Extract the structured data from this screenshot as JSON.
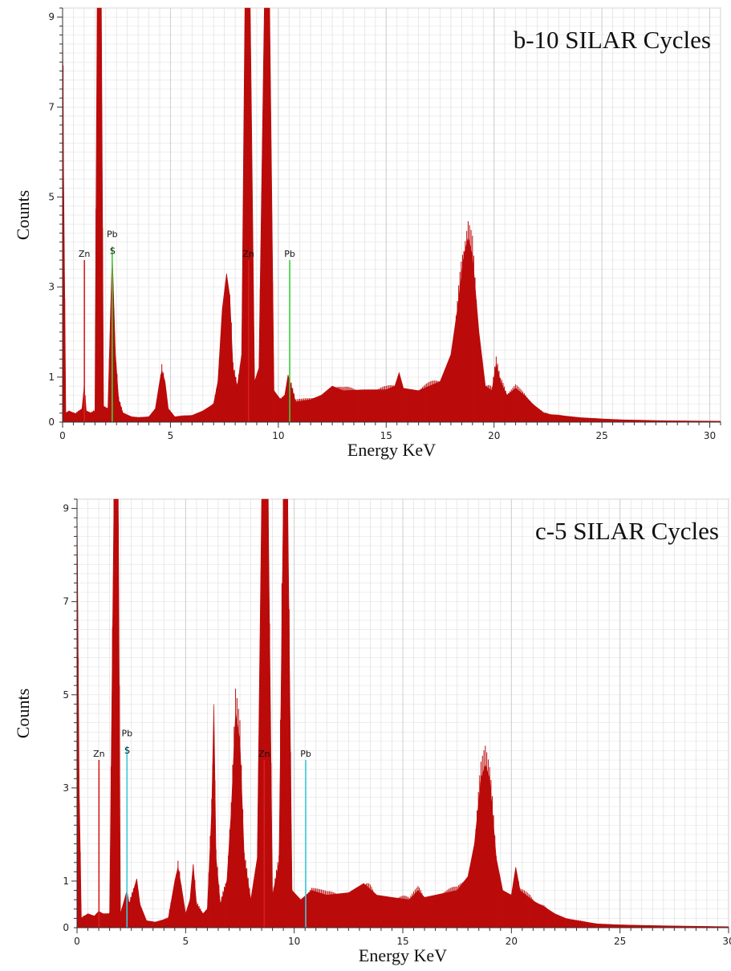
{
  "chart_data": [
    {
      "type": "area",
      "title": "b-10 SILAR Cycles",
      "xlabel": "Energy KeV",
      "ylabel": "Counts",
      "xlim": [
        0,
        30.5
      ],
      "ylim": [
        0,
        9.2
      ],
      "xticks": [
        0,
        5,
        10,
        15,
        20,
        25,
        30
      ],
      "yticks": [
        1,
        3,
        5,
        7,
        9
      ],
      "grid": true,
      "colors": {
        "spectrum": "#bb0b0b",
        "zn_marker": "#d91e1e",
        "pb_marker": "#3fcf3f"
      },
      "spectrum_points": [
        [
          0.0,
          9.2
        ],
        [
          0.05,
          5.5
        ],
        [
          0.15,
          0.2
        ],
        [
          0.3,
          0.25
        ],
        [
          0.6,
          0.18
        ],
        [
          0.9,
          0.3
        ],
        [
          1.0,
          0.8
        ],
        [
          1.1,
          0.25
        ],
        [
          1.3,
          0.2
        ],
        [
          1.5,
          0.25
        ],
        [
          1.6,
          9.2
        ],
        [
          1.8,
          9.2
        ],
        [
          1.9,
          0.35
        ],
        [
          2.1,
          0.3
        ],
        [
          2.3,
          3.8
        ],
        [
          2.45,
          1.5
        ],
        [
          2.6,
          0.5
        ],
        [
          2.8,
          0.2
        ],
        [
          3.2,
          0.12
        ],
        [
          3.5,
          0.1
        ],
        [
          4.0,
          0.12
        ],
        [
          4.3,
          0.3
        ],
        [
          4.5,
          0.9
        ],
        [
          4.6,
          1.15
        ],
        [
          4.75,
          0.9
        ],
        [
          4.9,
          0.3
        ],
        [
          5.2,
          0.12
        ],
        [
          6.0,
          0.15
        ],
        [
          6.5,
          0.25
        ],
        [
          7.0,
          0.4
        ],
        [
          7.2,
          0.9
        ],
        [
          7.4,
          2.5
        ],
        [
          7.6,
          3.3
        ],
        [
          7.75,
          2.8
        ],
        [
          7.9,
          1.2
        ],
        [
          8.1,
          0.8
        ],
        [
          8.3,
          1.5
        ],
        [
          8.45,
          9.2
        ],
        [
          8.7,
          9.2
        ],
        [
          8.9,
          0.9
        ],
        [
          9.1,
          1.2
        ],
        [
          9.35,
          9.2
        ],
        [
          9.6,
          9.2
        ],
        [
          9.8,
          0.7
        ],
        [
          10.1,
          0.5
        ],
        [
          10.3,
          0.6
        ],
        [
          10.45,
          1.05
        ],
        [
          10.6,
          0.8
        ],
        [
          10.8,
          0.45
        ],
        [
          11.5,
          0.5
        ],
        [
          12.0,
          0.6
        ],
        [
          12.5,
          0.8
        ],
        [
          13.0,
          0.7
        ],
        [
          14.0,
          0.72
        ],
        [
          15.0,
          0.72
        ],
        [
          15.4,
          0.8
        ],
        [
          15.6,
          1.1
        ],
        [
          15.8,
          0.75
        ],
        [
          16.5,
          0.7
        ],
        [
          17.5,
          0.9
        ],
        [
          18.0,
          1.5
        ],
        [
          18.3,
          2.5
        ],
        [
          18.6,
          3.7
        ],
        [
          18.8,
          4.1
        ],
        [
          19.0,
          3.7
        ],
        [
          19.3,
          2.0
        ],
        [
          19.6,
          0.8
        ],
        [
          19.9,
          0.7
        ],
        [
          20.1,
          1.3
        ],
        [
          20.3,
          0.9
        ],
        [
          20.6,
          0.6
        ],
        [
          21.0,
          0.75
        ],
        [
          21.4,
          0.6
        ],
        [
          21.8,
          0.4
        ],
        [
          22.3,
          0.2
        ],
        [
          22.6,
          0.17
        ],
        [
          23.0,
          0.15
        ],
        [
          24.0,
          0.1
        ],
        [
          25.0,
          0.07
        ],
        [
          26.0,
          0.05
        ],
        [
          28.0,
          0.03
        ],
        [
          30.5,
          0.02
        ]
      ],
      "markers": [
        {
          "label": "Zn",
          "x": 1.01,
          "height": 3.6,
          "element": "Zn"
        },
        {
          "label": "Pb",
          "x": 2.3,
          "height": 3.9,
          "element": "Pb"
        },
        {
          "label": "S",
          "x": 2.32,
          "height": 3.7,
          "element": "S"
        },
        {
          "label": "Zn",
          "x": 8.62,
          "height": 3.6,
          "element": "Zn"
        },
        {
          "label": "Pb",
          "x": 10.53,
          "height": 3.6,
          "element": "Pb"
        }
      ]
    },
    {
      "type": "area",
      "title": "c-5 SILAR Cycles",
      "xlabel": "Energy KeV",
      "ylabel": "Counts",
      "xlim": [
        0,
        30
      ],
      "ylim": [
        0,
        9.2
      ],
      "xticks": [
        0,
        5,
        10,
        15,
        20,
        25,
        30
      ],
      "yticks": [
        1,
        3,
        5,
        7,
        9
      ],
      "grid": true,
      "colors": {
        "spectrum": "#bb0b0b",
        "zn_marker": "#d91e1e",
        "pb_marker": "#3ec8d8"
      },
      "spectrum_points": [
        [
          0.0,
          9.2
        ],
        [
          0.1,
          3.0
        ],
        [
          0.2,
          0.2
        ],
        [
          0.5,
          0.3
        ],
        [
          0.8,
          0.25
        ],
        [
          1.0,
          0.35
        ],
        [
          1.2,
          0.3
        ],
        [
          1.5,
          0.3
        ],
        [
          1.7,
          9.2
        ],
        [
          1.9,
          9.2
        ],
        [
          2.0,
          0.3
        ],
        [
          2.3,
          0.8
        ],
        [
          2.4,
          0.5
        ],
        [
          2.6,
          0.8
        ],
        [
          2.75,
          1.05
        ],
        [
          2.9,
          0.5
        ],
        [
          3.2,
          0.15
        ],
        [
          3.6,
          0.12
        ],
        [
          4.2,
          0.2
        ],
        [
          4.5,
          1.0
        ],
        [
          4.65,
          1.3
        ],
        [
          4.8,
          0.9
        ],
        [
          5.0,
          0.3
        ],
        [
          5.2,
          0.6
        ],
        [
          5.35,
          1.35
        ],
        [
          5.5,
          0.5
        ],
        [
          5.8,
          0.3
        ],
        [
          6.0,
          0.4
        ],
        [
          6.2,
          2.5
        ],
        [
          6.3,
          4.8
        ],
        [
          6.4,
          1.5
        ],
        [
          6.6,
          0.5
        ],
        [
          6.9,
          1.0
        ],
        [
          7.1,
          2.5
        ],
        [
          7.3,
          4.6
        ],
        [
          7.5,
          4.0
        ],
        [
          7.7,
          1.5
        ],
        [
          8.0,
          0.6
        ],
        [
          8.3,
          1.5
        ],
        [
          8.5,
          9.2
        ],
        [
          8.8,
          9.2
        ],
        [
          9.0,
          0.7
        ],
        [
          9.3,
          1.4
        ],
        [
          9.5,
          9.2
        ],
        [
          9.7,
          9.2
        ],
        [
          9.9,
          0.8
        ],
        [
          10.3,
          0.6
        ],
        [
          10.8,
          0.8
        ],
        [
          11.5,
          0.7
        ],
        [
          12.5,
          0.75
        ],
        [
          13.2,
          0.95
        ],
        [
          13.8,
          0.7
        ],
        [
          14.5,
          0.65
        ],
        [
          15.3,
          0.6
        ],
        [
          15.7,
          0.8
        ],
        [
          16.0,
          0.65
        ],
        [
          16.5,
          0.7
        ],
        [
          17.5,
          0.8
        ],
        [
          18.0,
          1.1
        ],
        [
          18.3,
          1.8
        ],
        [
          18.6,
          3.2
        ],
        [
          18.8,
          3.5
        ],
        [
          19.0,
          3.2
        ],
        [
          19.3,
          1.5
        ],
        [
          19.6,
          0.8
        ],
        [
          20.0,
          0.7
        ],
        [
          20.2,
          1.3
        ],
        [
          20.4,
          0.8
        ],
        [
          20.8,
          0.65
        ],
        [
          21.1,
          0.55
        ],
        [
          21.5,
          0.45
        ],
        [
          22.0,
          0.3
        ],
        [
          22.5,
          0.2
        ],
        [
          23.0,
          0.15
        ],
        [
          24.0,
          0.08
        ],
        [
          25.0,
          0.06
        ],
        [
          27.0,
          0.04
        ],
        [
          30.0,
          0.02
        ]
      ],
      "markers": [
        {
          "label": "Zn",
          "x": 1.01,
          "height": 3.6,
          "element": "Zn"
        },
        {
          "label": "Pb",
          "x": 2.3,
          "height": 3.9,
          "element": "Pb"
        },
        {
          "label": "S",
          "x": 2.31,
          "height": 3.7,
          "element": "S"
        },
        {
          "label": "Zn",
          "x": 8.62,
          "height": 3.6,
          "element": "Zn"
        },
        {
          "label": "Pb",
          "x": 10.53,
          "height": 3.6,
          "element": "Pb"
        }
      ]
    }
  ]
}
